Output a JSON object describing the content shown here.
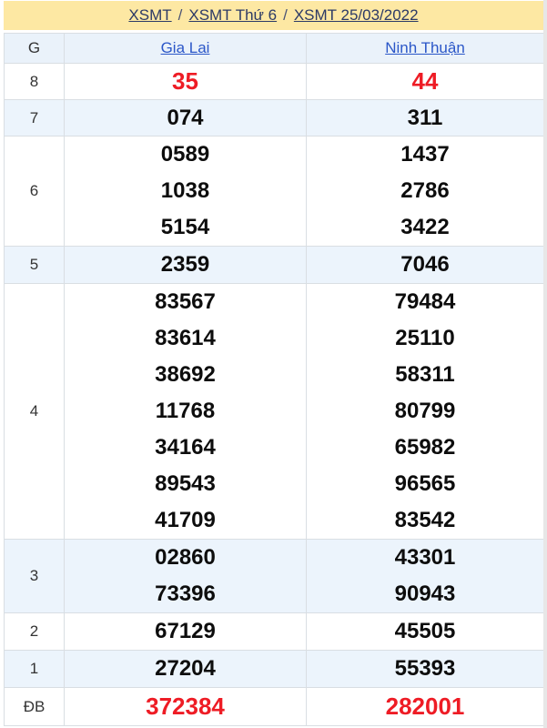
{
  "breadcrumb": {
    "items": [
      "XSMT",
      "XSMT Thứ 6",
      "XSMT 25/03/2022"
    ],
    "separator": "/"
  },
  "table": {
    "header": {
      "g": "G",
      "provinces": [
        "Gia Lai",
        "Ninh Thuận"
      ]
    },
    "rows": [
      {
        "label": "8",
        "col1": [
          "35"
        ],
        "col2": [
          "44"
        ]
      },
      {
        "label": "7",
        "col1": [
          "074"
        ],
        "col2": [
          "311"
        ]
      },
      {
        "label": "6",
        "col1": [
          "0589",
          "1038",
          "5154"
        ],
        "col2": [
          "1437",
          "2786",
          "3422"
        ]
      },
      {
        "label": "5",
        "col1": [
          "2359"
        ],
        "col2": [
          "7046"
        ]
      },
      {
        "label": "4",
        "col1": [
          "83567",
          "83614",
          "38692",
          "11768",
          "34164",
          "89543",
          "41709"
        ],
        "col2": [
          "79484",
          "25110",
          "58311",
          "80799",
          "65982",
          "96565",
          "83542"
        ]
      },
      {
        "label": "3",
        "col1": [
          "02860",
          "73396"
        ],
        "col2": [
          "43301",
          "90943"
        ]
      },
      {
        "label": "2",
        "col1": [
          "67129"
        ],
        "col2": [
          "45505"
        ]
      },
      {
        "label": "1",
        "col1": [
          "27204"
        ],
        "col2": [
          "55393"
        ]
      },
      {
        "label": "ĐB",
        "col1": [
          "372384"
        ],
        "col2": [
          "282001"
        ]
      }
    ]
  },
  "colors": {
    "title_bar_bg": "#fde8a3",
    "shade_row_bg": "#ecf4fc",
    "header_row_bg": "#eaf2fa",
    "highlight_number": "#ee1c25",
    "province_link": "#2b57c8",
    "breadcrumb_link": "#2c3a66",
    "border": "#d9dee3"
  }
}
